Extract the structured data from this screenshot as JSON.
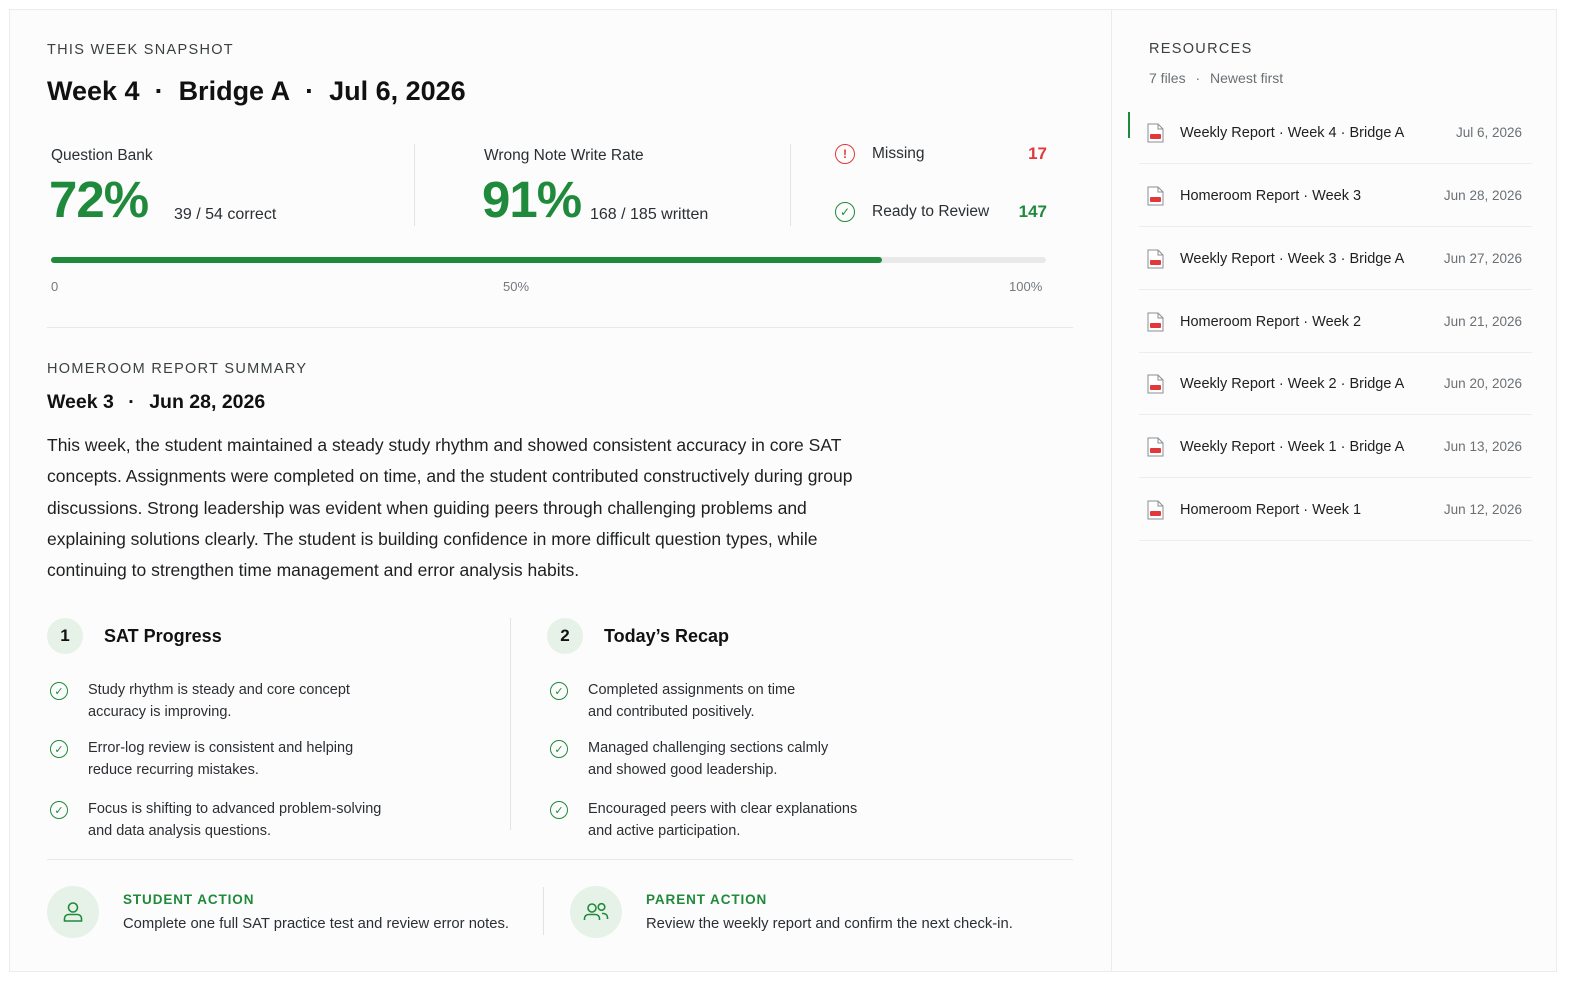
{
  "snapshot": {
    "eyebrow": "THIS WEEK SNAPSHOT",
    "week": "Week 4",
    "group": "Bridge A",
    "date": "Jul 6, 2026",
    "separator": "·"
  },
  "question_bank": {
    "label": "Question Bank",
    "percent_text": "72%",
    "detail": "39 / 54 correct"
  },
  "wrong_note": {
    "label": "Wrong Note Write Rate",
    "percent_text": "91%",
    "detail": "168 / 185 written"
  },
  "status": {
    "missing_label": "Missing",
    "missing_count": "17",
    "ready_label": "Ready to Review",
    "ready_count": "147"
  },
  "progress": {
    "value_percent": 83.5,
    "tick_min": "0",
    "tick_mid": "50%",
    "tick_max": "100%"
  },
  "homeroom": {
    "eyebrow": "HOMEROOM REPORT SUMMARY",
    "week": "Week 3",
    "separator": "·",
    "date": "Jun 28, 2026",
    "body": "This week, the student maintained a steady study rhythm and showed consistent accuracy in core SAT concepts. Assignments were completed on time, and the student contributed constructively during group discussions. Strong leadership was evident when guiding peers through challenging problems and explaining solutions clearly. The student is building confidence in more difficult question types, while continuing to strengthen time management and error analysis habits."
  },
  "sections": [
    {
      "number": "1",
      "title": "SAT Progress",
      "items": [
        "Study rhythm is steady and core concept\naccuracy is improving.",
        "Error-log review is consistent and helping\nreduce recurring mistakes.",
        "Focus is shifting to advanced problem-solving\nand data analysis questions."
      ]
    },
    {
      "number": "2",
      "title": "Today’s Recap",
      "items": [
        "Completed assignments on time\nand contributed positively.",
        "Managed challenging sections calmly\nand showed good leadership.",
        "Encouraged peers with clear explanations\nand active participation."
      ]
    }
  ],
  "actions": {
    "student_label": "STUDENT ACTION",
    "student_text": "Complete one full SAT practice test and review error notes.",
    "parent_label": "PARENT ACTION",
    "parent_text": "Review the weekly report and confirm the next check-in."
  },
  "resources": {
    "eyebrow": "RESOURCES",
    "count": "7 files",
    "separator": "·",
    "sort": "Newest first",
    "files": [
      {
        "name": "Weekly Report · Week 4 · Bridge A",
        "date": "Jul 6, 2026"
      },
      {
        "name": "Homeroom Report · Week 3",
        "date": "Jun 28, 2026"
      },
      {
        "name": "Weekly Report · Week 3 · Bridge A",
        "date": "Jun 27, 2026"
      },
      {
        "name": "Homeroom Report · Week 2",
        "date": "Jun 21, 2026"
      },
      {
        "name": "Weekly Report · Week 2 · Bridge A",
        "date": "Jun 20, 2026"
      },
      {
        "name": "Weekly Report · Week 1 · Bridge A",
        "date": "Jun 13, 2026"
      },
      {
        "name": "Homeroom Report · Week 1",
        "date": "Jun 12, 2026"
      }
    ],
    "pdf_icon": "pdf-file-icon"
  },
  "colors": {
    "accent": "#1f8a3b",
    "alert": "#e0393b",
    "badge_bg": "#e6f2e8"
  }
}
